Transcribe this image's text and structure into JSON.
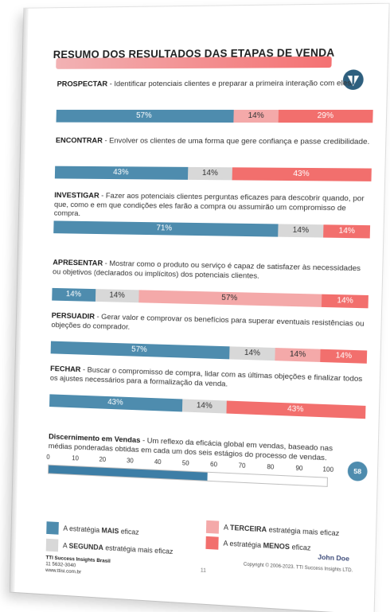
{
  "title": "RESUMO DOS RESULTADOS DAS ETAPAS DE VENDA",
  "colors": {
    "mais": "#4e8cae",
    "segunda": "#d8d8d8",
    "terceira": "#f4a9a9",
    "menos": "#f26f6d",
    "title_accent": "#f47172"
  },
  "stages": [
    {
      "name": "PROSPECTAR",
      "desc": " - Identificar potenciais clientes e preparar a primeira interação com eles.",
      "segments": [
        {
          "label": "57%",
          "pct": 57,
          "kind": "mais"
        },
        {
          "label": "14%",
          "pct": 14,
          "kind": "terceira"
        },
        {
          "label": "29%",
          "pct": 29,
          "kind": "menos"
        }
      ]
    },
    {
      "name": "ENCONTRAR",
      "desc": " - Envolver os clientes de uma forma que gere confiança e passe credibilidade.",
      "segments": [
        {
          "label": "43%",
          "pct": 43,
          "kind": "mais"
        },
        {
          "label": "14%",
          "pct": 14,
          "kind": "segunda"
        },
        {
          "label": "43%",
          "pct": 43,
          "kind": "menos"
        }
      ]
    },
    {
      "name": "INVESTIGAR",
      "desc": " - Fazer aos potenciais clientes perguntas eficazes para descobrir quando, por que, como e em que condições eles farão a compra ou assumirão um compromisso de compra.",
      "segments": [
        {
          "label": "71%",
          "pct": 71,
          "kind": "mais"
        },
        {
          "label": "14%",
          "pct": 14,
          "kind": "segunda"
        },
        {
          "label": "14%",
          "pct": 14,
          "kind": "menos"
        }
      ]
    },
    {
      "name": "APRESENTAR",
      "desc": " - Mostrar como o produto ou serviço é capaz de satisfazer às necessidades ou objetivos (declarados ou implícitos) dos potenciais clientes.",
      "segments": [
        {
          "label": "14%",
          "pct": 14,
          "kind": "mais"
        },
        {
          "label": "14%",
          "pct": 14,
          "kind": "segunda"
        },
        {
          "label": "57%",
          "pct": 57,
          "kind": "terceira"
        },
        {
          "label": "14%",
          "pct": 14,
          "kind": "menos"
        }
      ]
    },
    {
      "name": "PERSUADIR",
      "desc": " - Gerar valor e comprovar os benefícios para superar eventuais resistências ou objeções do comprador.",
      "segments": [
        {
          "label": "57%",
          "pct": 57,
          "kind": "mais"
        },
        {
          "label": "14%",
          "pct": 14,
          "kind": "segunda"
        },
        {
          "label": "14%",
          "pct": 14,
          "kind": "terceira"
        },
        {
          "label": "14%",
          "pct": 14,
          "kind": "menos"
        }
      ]
    },
    {
      "name": "FECHAR",
      "desc": " - Buscar o compromisso de compra, lidar com as últimas objeções e finalizar todos os ajustes necessários para a formalização da venda.",
      "segments": [
        {
          "label": "43%",
          "pct": 43,
          "kind": "mais"
        },
        {
          "label": "14%",
          "pct": 14,
          "kind": "segunda"
        },
        {
          "label": "43%",
          "pct": 43,
          "kind": "menos"
        }
      ]
    }
  ],
  "discernimento": {
    "name": "Discernimento em Vendas",
    "desc": " - Um reflexo da eficácia global em vendas, baseado nas médias ponderadas obtidas em cada um dos seis estágios do processo de vendas.",
    "scale": [
      "0",
      "10",
      "20",
      "30",
      "40",
      "50",
      "60",
      "70",
      "80",
      "90",
      "100"
    ],
    "score": "58",
    "score_value": 58
  },
  "legend": {
    "mais": {
      "prefix": "A estratégia ",
      "strong": "MAIS",
      "suffix": " eficaz"
    },
    "segunda": {
      "prefix": "A ",
      "strong": "SEGUNDA",
      "suffix": " estratégia mais eficaz"
    },
    "terceira": {
      "prefix": "A ",
      "strong": "TERCEIRA",
      "suffix": " estratégia mais eficaz"
    },
    "menos": {
      "prefix": "A estratégia ",
      "strong": "MENOS",
      "suffix": " eficaz"
    }
  },
  "footer": {
    "company": "TTI Success Insights Brasil",
    "phone": "11 5632-3040",
    "site": "www.ttisi.com.br",
    "page": "11",
    "name": "John Doe",
    "copyright": "Copyright © 2006-2023. TTI Success Insights LTD."
  }
}
